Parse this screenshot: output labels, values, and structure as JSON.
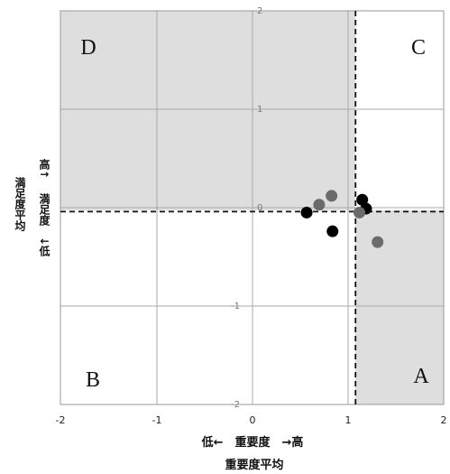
{
  "chart_data": {
    "type": "scatter",
    "xlabel": "重要度平均",
    "x_axis_caption": "低←　重要度　→高",
    "y_axis_caption_high": "高↑",
    "y_axis_caption_main": "満足度",
    "y_axis_caption_low": "↓低",
    "y_axis_side_label": "満足度平均",
    "xlim": [
      -2,
      2
    ],
    "ylim": [
      -2,
      2
    ],
    "x_ticks": [
      "-2",
      "-1",
      "0",
      "1",
      "2"
    ],
    "y_ticks": [
      "2",
      "1",
      "0",
      "-1",
      "-2"
    ],
    "grid": true,
    "reference_lines": {
      "x": 1.08,
      "y": -0.04
    },
    "quadrants": [
      {
        "label": "D",
        "shaded": true
      },
      {
        "label": "C",
        "shaded": false
      },
      {
        "label": "B",
        "shaded": false
      },
      {
        "label": "A",
        "shaded": true
      }
    ],
    "series": [
      {
        "color": "#000000",
        "points": [
          {
            "x": 0.57,
            "y": -0.05
          },
          {
            "x": 0.84,
            "y": -0.24
          },
          {
            "x": 1.15,
            "y": 0.08
          },
          {
            "x": 1.19,
            "y": -0.01
          }
        ]
      },
      {
        "color": "#6b6b6b",
        "points": [
          {
            "x": 0.7,
            "y": 0.03
          },
          {
            "x": 0.83,
            "y": 0.12
          },
          {
            "x": 1.12,
            "y": -0.05
          },
          {
            "x": 1.31,
            "y": -0.35
          }
        ]
      }
    ]
  }
}
